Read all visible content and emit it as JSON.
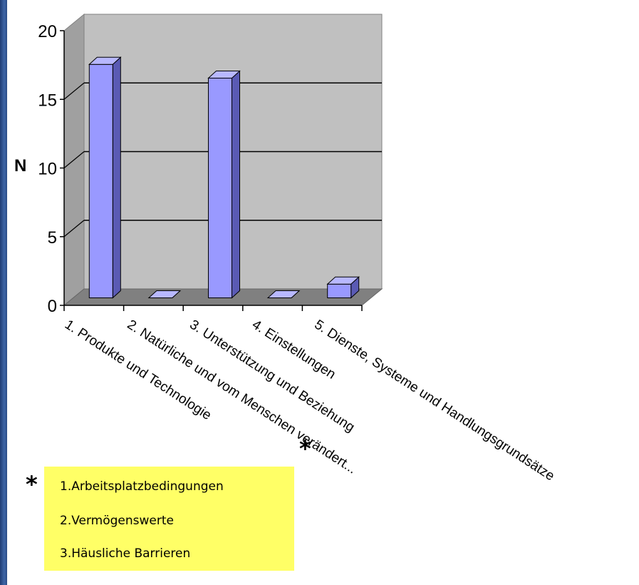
{
  "chart_data": {
    "type": "bar",
    "categories": [
      "1. Produkte und Technologie",
      "2. Natürliche und vom Menschen verändert...",
      "3. Unterstützung und Beziehung",
      "4. Einstellungen",
      "5. Dienste, Systeme und Handlungsgrundsätze"
    ],
    "values": [
      17,
      0,
      16,
      0,
      1
    ],
    "ylabel": "N",
    "ylim": [
      0,
      20
    ],
    "yticks": [
      "0",
      "5",
      "10",
      "15",
      "20"
    ],
    "grid": true,
    "style": "3d-column",
    "colors": {
      "bar_front": "#9999ff",
      "bar_side": "#5a5ab4",
      "bar_top": "#b8b8ff",
      "wall": "#c0c0c0",
      "floor": "#808080"
    }
  },
  "markers": {
    "asterisk": "*"
  },
  "legend_box": {
    "items": [
      "1.Arbeitsplatzbedingungen",
      "2.Vermögenswerte",
      "3.Häusliche Barrieren"
    ],
    "color": "#ffff66"
  }
}
